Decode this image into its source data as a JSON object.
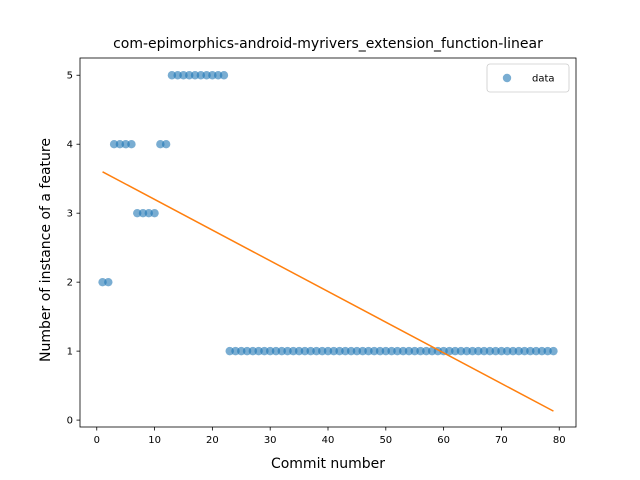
{
  "chart_data": {
    "type": "scatter",
    "title": "com-epimorphics-android-myrivers_extension_function-linear",
    "xlabel": "Commit number",
    "ylabel": "Number of instance of a feature",
    "xlim": [
      -2.9,
      82.9
    ],
    "ylim": [
      -0.1,
      5.25
    ],
    "xticks": [
      0,
      10,
      20,
      30,
      40,
      50,
      60,
      70,
      80
    ],
    "yticks": [
      0,
      1,
      2,
      3,
      4,
      5
    ],
    "grid": false,
    "legend": {
      "placement": "top-right",
      "entries": [
        "data"
      ]
    },
    "colors": {
      "data": "#1f77b4",
      "fit": "#ff7f0e"
    },
    "series": [
      {
        "name": "data",
        "kind": "scatter",
        "x": [
          1,
          2,
          3,
          4,
          5,
          6,
          7,
          8,
          9,
          10,
          11,
          12,
          13,
          14,
          15,
          16,
          17,
          18,
          19,
          20,
          21,
          22,
          23,
          24,
          25,
          26,
          27,
          28,
          29,
          30,
          31,
          32,
          33,
          34,
          35,
          36,
          37,
          38,
          39,
          40,
          41,
          42,
          43,
          44,
          45,
          46,
          47,
          48,
          49,
          50,
          51,
          52,
          53,
          54,
          55,
          56,
          57,
          58,
          59,
          60,
          61,
          62,
          63,
          64,
          65,
          66,
          67,
          68,
          69,
          70,
          71,
          72,
          73,
          74,
          75,
          76,
          77,
          78,
          79
        ],
        "y": [
          2,
          2,
          4,
          4,
          4,
          4,
          3,
          3,
          3,
          3,
          4,
          4,
          5,
          5,
          5,
          5,
          5,
          5,
          5,
          5,
          5,
          5,
          1,
          1,
          1,
          1,
          1,
          1,
          1,
          1,
          1,
          1,
          1,
          1,
          1,
          1,
          1,
          1,
          1,
          1,
          1,
          1,
          1,
          1,
          1,
          1,
          1,
          1,
          1,
          1,
          1,
          1,
          1,
          1,
          1,
          1,
          1,
          1,
          1,
          1,
          1,
          1,
          1,
          1,
          1,
          1,
          1,
          1,
          1,
          1,
          1,
          1,
          1,
          1,
          1,
          1,
          1,
          1,
          1
        ]
      },
      {
        "kind": "line",
        "x": [
          1,
          79
        ],
        "y": [
          3.6,
          0.13
        ]
      }
    ]
  }
}
